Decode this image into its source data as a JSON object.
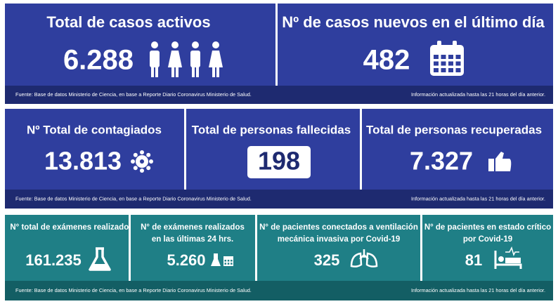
{
  "panels": [
    {
      "cards": [
        {
          "title": [
            "Total de casos activos"
          ],
          "value": "6.288"
        },
        {
          "title": [
            "Nº de casos nuevos en el último día"
          ],
          "value": "482"
        }
      ],
      "source": "Fuente: Base de datos Ministerio de Ciencia, en base a Reporte Diario Coronavirus Ministerio de Salud.",
      "updated": "Información actualizada hasta las 21 horas  del día anterior."
    },
    {
      "cards": [
        {
          "title": [
            "Nº Total de contagiados"
          ],
          "value": "13.813"
        },
        {
          "title": [
            "Total de personas fallecidas"
          ],
          "value": "198"
        },
        {
          "title": [
            "Total de personas recuperadas"
          ],
          "value": "7.327"
        }
      ],
      "source": "Fuente: Base de datos Ministerio de Ciencia, en base a Reporte Diario Coronavirus Ministerio de Salud.",
      "updated": "Información actualizada hasta las 21 horas  del día anterior."
    },
    {
      "cards": [
        {
          "title": [
            "N° total de exámenes realizados"
          ],
          "value": "161.235"
        },
        {
          "title": [
            "N° de exámenes realizados",
            "en las últimas 24 hrs."
          ],
          "value": "5.260"
        },
        {
          "title": [
            "N° de pacientes conectados a ventilación",
            "mecánica invasiva por Covid-19"
          ],
          "value": "325"
        },
        {
          "title": [
            "N° de pacientes en estado crítico",
            "por Covid-19"
          ],
          "value": "81"
        }
      ],
      "source": "Fuente: Base de datos Ministerio de Ciencia, en base a Reporte Diario Coronavirus Ministerio de Salud.",
      "updated": "Información actualizada hasta las 21 horas  del día anterior."
    }
  ]
}
